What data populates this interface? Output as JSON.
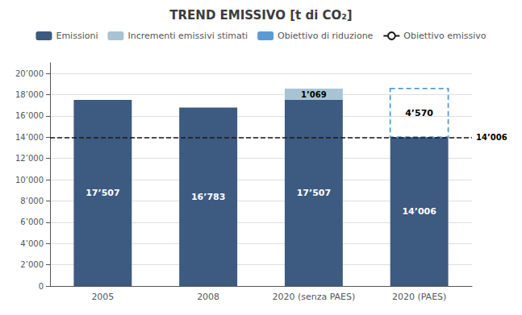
{
  "chart_data": {
    "type": "bar",
    "title": "TREND EMISSIVO [t di CO₂]",
    "categories": [
      "2005",
      "2008",
      "2020 (senza PAES)",
      "2020 (PAES)"
    ],
    "stacked": true,
    "data_labels": true,
    "grid": true,
    "series": [
      {
        "name": "Emissioni",
        "color": "#3D5A80",
        "values": [
          17507,
          16783,
          17507,
          14006
        ],
        "value_labels": [
          "17’507",
          "16’783",
          "17’507",
          "14’006"
        ]
      },
      {
        "name": "Incrementi emissivi stimati",
        "color": "#A8C4D4",
        "values": [
          0,
          0,
          1069,
          0
        ],
        "value_labels": [
          null,
          null,
          "1’069",
          null
        ]
      }
    ],
    "boxes": [
      {
        "name": "Obiettivo di riduzione",
        "category": "2020 (PAES)",
        "bottom": 14006,
        "top": 18576,
        "label": "4’570",
        "color": "#5B9BD5",
        "line_style": "dashed"
      }
    ],
    "hlines": [
      {
        "name": "Obiettivo emissivo",
        "y": 14006,
        "label": "14’006",
        "color": "#1a1a1a",
        "line_style": "dashed"
      }
    ],
    "ylim": [
      0,
      21000
    ],
    "yticks": [
      0,
      {
        "value": 2000,
        "label": "2’000"
      },
      {
        "value": 4000,
        "label": "4’000"
      },
      {
        "value": 6000,
        "label": "6’000"
      },
      {
        "value": 8000,
        "label": "8’000"
      },
      {
        "value": 10000,
        "label": "10’000"
      },
      {
        "value": 12000,
        "label": "12’000"
      },
      {
        "value": 14000,
        "label": "14’000"
      },
      {
        "value": 16000,
        "label": "16’000"
      },
      {
        "value": 18000,
        "label": "18’000"
      },
      {
        "value": 20000,
        "label": "20’000"
      }
    ]
  }
}
